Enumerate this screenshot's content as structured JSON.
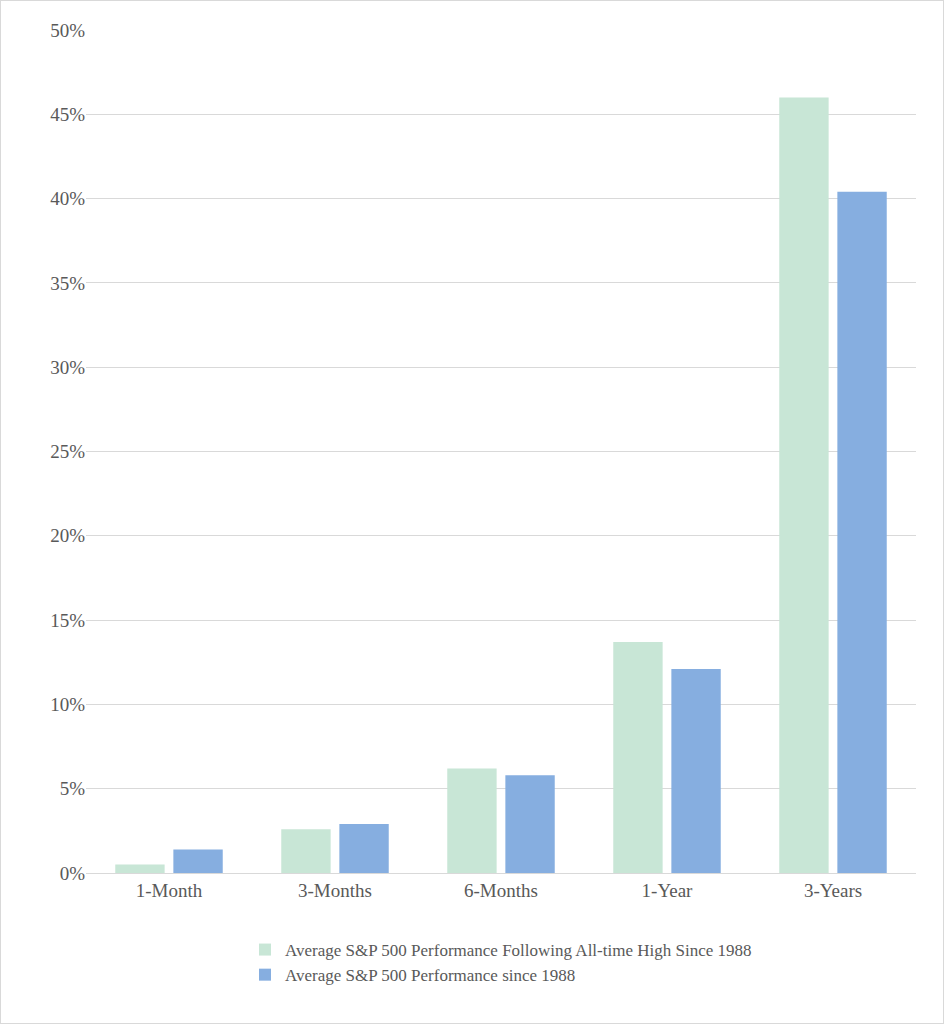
{
  "chart_data": {
    "type": "bar",
    "categories": [
      "1-Month",
      "3-Months",
      "6-Months",
      "1-Year",
      "3-Years"
    ],
    "series": [
      {
        "name": "Average S&P 500 Performance Following All-time High Since 1988",
        "color": "#c8e6d6",
        "values": [
          0.5,
          2.6,
          6.2,
          13.7,
          46.0
        ]
      },
      {
        "name": "Average S&P 500 Performance since 1988",
        "color": "#86aee0",
        "values": [
          1.4,
          2.9,
          5.8,
          12.1,
          40.4
        ]
      }
    ],
    "ylim": [
      0,
      50
    ],
    "yticks": [
      {
        "value": 0,
        "label": "0%"
      },
      {
        "value": 5,
        "label": "5%"
      },
      {
        "value": 10,
        "label": "10%"
      },
      {
        "value": 15,
        "label": "15%"
      },
      {
        "value": 20,
        "label": "20%"
      },
      {
        "value": 25,
        "label": "25%"
      },
      {
        "value": 30,
        "label": "30%"
      },
      {
        "value": 35,
        "label": "35%"
      },
      {
        "value": 40,
        "label": "40%"
      },
      {
        "value": 45,
        "label": "45%"
      },
      {
        "value": 50,
        "label": "50%"
      }
    ],
    "grid": true,
    "legend": "bottom"
  }
}
